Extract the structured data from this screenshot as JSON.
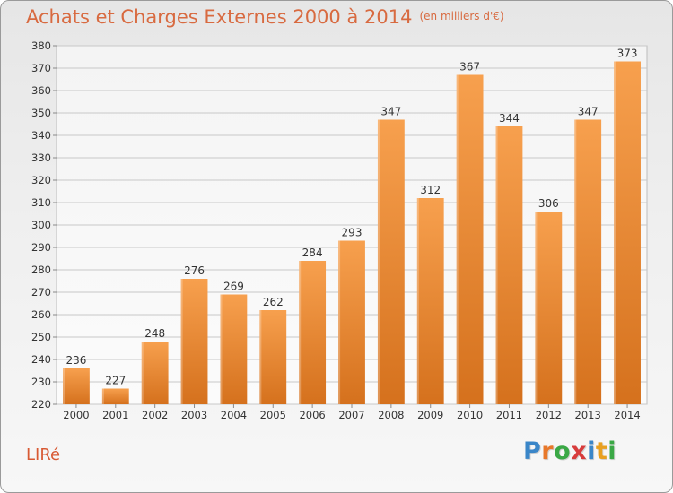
{
  "header": {
    "title": "Achats et Charges Externes 2000 à 2014",
    "unit": "(en milliers d'€)"
  },
  "footer": {
    "commune": "LIRé",
    "logo_letters": [
      "P",
      "r",
      "o",
      "x",
      "i",
      "t",
      "i"
    ],
    "logo_colors": [
      "#3a86c8",
      "#e8782a",
      "#3aa845",
      "#d83c3c",
      "#3a86c8",
      "#e8a020",
      "#3aa845"
    ]
  },
  "colors": {
    "bar_light": "#f7a04e",
    "bar_dark": "#d5711d",
    "title": "#d86a40",
    "grid": "#c8c8c8",
    "axis_text": "#333333"
  },
  "chart_data": {
    "type": "bar",
    "title": "Achats et Charges Externes 2000 à 2014",
    "subtitle": "(en milliers d'€)",
    "categories": [
      "2000",
      "2001",
      "2002",
      "2003",
      "2004",
      "2005",
      "2006",
      "2007",
      "2008",
      "2009",
      "2010",
      "2011",
      "2012",
      "2013",
      "2014"
    ],
    "values": [
      236,
      227,
      248,
      276,
      269,
      262,
      284,
      293,
      347,
      312,
      367,
      344,
      306,
      347,
      373
    ],
    "ylim": [
      220,
      380
    ],
    "yticks": [
      220,
      230,
      240,
      250,
      260,
      270,
      280,
      290,
      300,
      310,
      320,
      330,
      340,
      350,
      360,
      370,
      380
    ],
    "grid": true,
    "data_labels": true
  }
}
